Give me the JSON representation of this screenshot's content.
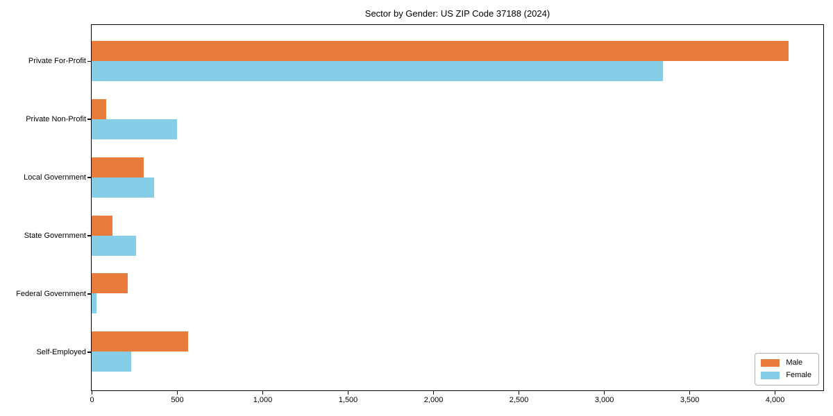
{
  "chart_data": {
    "type": "bar",
    "orientation": "horizontal",
    "title": "Sector by Gender: US ZIP Code 37188 (2024)",
    "categories": [
      "Private For-Profit",
      "Private Non-Profit",
      "Local Government",
      "State Government",
      "Federal Government",
      "Self-Employed"
    ],
    "series": [
      {
        "name": "Male",
        "color": "#e87c3c",
        "values": [
          4075,
          85,
          305,
          120,
          210,
          565
        ]
      },
      {
        "name": "Female",
        "color": "#86cde8",
        "values": [
          3340,
          500,
          365,
          260,
          30,
          230
        ]
      }
    ],
    "xlabel": "",
    "ylabel": "",
    "xlim": [
      0,
      4280
    ],
    "xticks": [
      {
        "value": 0,
        "label": "0"
      },
      {
        "value": 500,
        "label": "500"
      },
      {
        "value": 1000,
        "label": "1,000"
      },
      {
        "value": 1500,
        "label": "1,500"
      },
      {
        "value": 2000,
        "label": "2,000"
      },
      {
        "value": 2500,
        "label": "2,500"
      },
      {
        "value": 3000,
        "label": "3,000"
      },
      {
        "value": 3500,
        "label": "3,500"
      },
      {
        "value": 4000,
        "label": "4,000"
      }
    ],
    "grid": false,
    "legend": {
      "position": "lower right",
      "entries": [
        "Male",
        "Female"
      ]
    }
  }
}
